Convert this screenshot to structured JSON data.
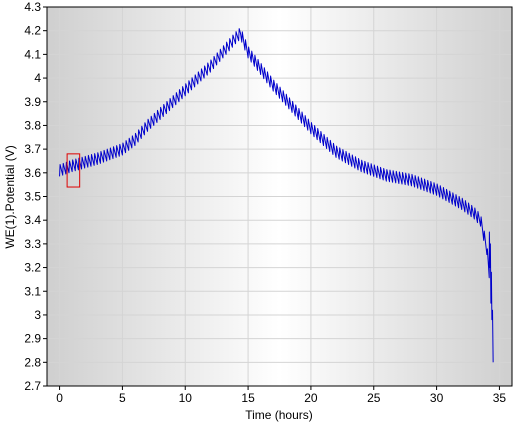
{
  "chart_data": {
    "type": "line",
    "title": "",
    "xlabel": "Time (hours)",
    "ylabel": "WE(1).Potential (V)",
    "xlim": [
      -1,
      36
    ],
    "ylim": [
      2.7,
      4.3
    ],
    "xticks": [
      0,
      5,
      10,
      15,
      20,
      25,
      30,
      35
    ],
    "yticks": [
      2.7,
      2.8,
      2.9,
      3.0,
      3.1,
      3.2,
      3.3,
      3.4,
      3.5,
      3.6,
      3.7,
      3.8,
      3.9,
      4.0,
      4.1,
      4.2,
      4.3
    ],
    "xtick_labels": [
      "0",
      "5",
      "10",
      "15",
      "20",
      "25",
      "30",
      "35"
    ],
    "ytick_labels": [
      "2.7",
      "2.8",
      "2.9",
      "3",
      "3.1",
      "3.2",
      "3.3",
      "3.4",
      "3.5",
      "3.6",
      "3.7",
      "3.8",
      "3.9",
      "4",
      "4.1",
      "4.2",
      "4.3"
    ],
    "grid": true,
    "series": [
      {
        "color": "#0000cc",
        "envelope": [
          [
            0.0,
            3.61
          ],
          [
            1.0,
            3.63
          ],
          [
            3.0,
            3.66
          ],
          [
            5.0,
            3.7
          ],
          [
            6.0,
            3.74
          ],
          [
            7.0,
            3.8
          ],
          [
            8.0,
            3.85
          ],
          [
            9.0,
            3.9
          ],
          [
            10.0,
            3.95
          ],
          [
            11.0,
            4.0
          ],
          [
            12.0,
            4.05
          ],
          [
            13.0,
            4.11
          ],
          [
            14.0,
            4.17
          ],
          [
            14.4,
            4.19
          ],
          [
            15.0,
            4.11
          ],
          [
            16.0,
            4.04
          ],
          [
            17.0,
            3.97
          ],
          [
            18.0,
            3.91
          ],
          [
            19.0,
            3.85
          ],
          [
            20.0,
            3.79
          ],
          [
            21.0,
            3.74
          ],
          [
            22.0,
            3.69
          ],
          [
            23.0,
            3.66
          ],
          [
            24.0,
            3.63
          ],
          [
            25.0,
            3.61
          ],
          [
            26.0,
            3.59
          ],
          [
            27.0,
            3.58
          ],
          [
            28.0,
            3.57
          ],
          [
            29.0,
            3.55
          ],
          [
            30.0,
            3.53
          ],
          [
            31.0,
            3.5
          ],
          [
            32.0,
            3.47
          ],
          [
            33.0,
            3.43
          ],
          [
            33.5,
            3.4
          ],
          [
            34.0,
            3.28
          ],
          [
            34.3,
            3.1
          ],
          [
            34.5,
            2.8
          ]
        ],
        "oscillation_amplitude": 0.025,
        "oscillation_period_hours": 0.25
      }
    ],
    "annotation": {
      "type": "rectangle",
      "color": "#dd0000",
      "x_range": [
        0.6,
        1.6
      ],
      "y_range": [
        3.54,
        3.68
      ]
    }
  }
}
